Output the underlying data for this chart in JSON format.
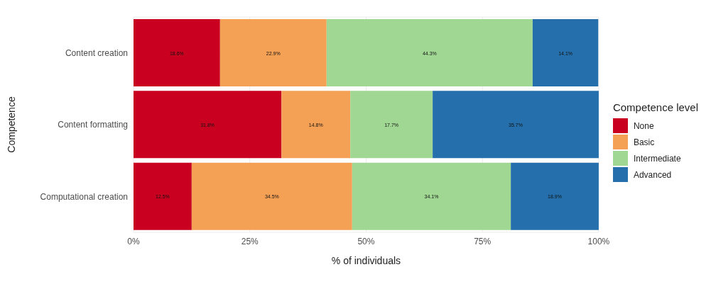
{
  "chart_data": {
    "type": "bar",
    "orientation": "horizontal",
    "stacked": true,
    "categories": [
      "Content creation",
      "Content formatting",
      "Computational creation"
    ],
    "xlabel": "% of individuals",
    "ylabel": "Competence",
    "legend_title": "Competence level",
    "series": [
      {
        "name": "None",
        "color": "#ca0020",
        "values": [
          18.6,
          31.8,
          12.5
        ],
        "value_labels": [
          "18.6%",
          "31.8%",
          "12.5%"
        ]
      },
      {
        "name": "Basic",
        "color": "#f4a055",
        "values": [
          22.9,
          14.8,
          34.5
        ],
        "value_labels": [
          "22.9%",
          "14.8%",
          "34.5%"
        ]
      },
      {
        "name": "Intermediate",
        "color": "#a0d793",
        "values": [
          44.3,
          17.7,
          34.1
        ],
        "value_labels": [
          "44.3%",
          "17.7%",
          "34.1%"
        ]
      },
      {
        "name": "Advanced",
        "color": "#2570ac",
        "values": [
          14.1,
          35.7,
          18.9
        ],
        "value_labels": [
          "14.1%",
          "35.7%",
          "18.9%"
        ]
      }
    ],
    "xlim": [
      0,
      100
    ],
    "xticks": [
      {
        "value": 0,
        "label": "0%"
      },
      {
        "value": 25,
        "label": "25%"
      },
      {
        "value": 50,
        "label": "50%"
      },
      {
        "value": 75,
        "label": "75%"
      },
      {
        "value": 100,
        "label": "100%"
      }
    ],
    "grid": true,
    "legend": "right"
  }
}
